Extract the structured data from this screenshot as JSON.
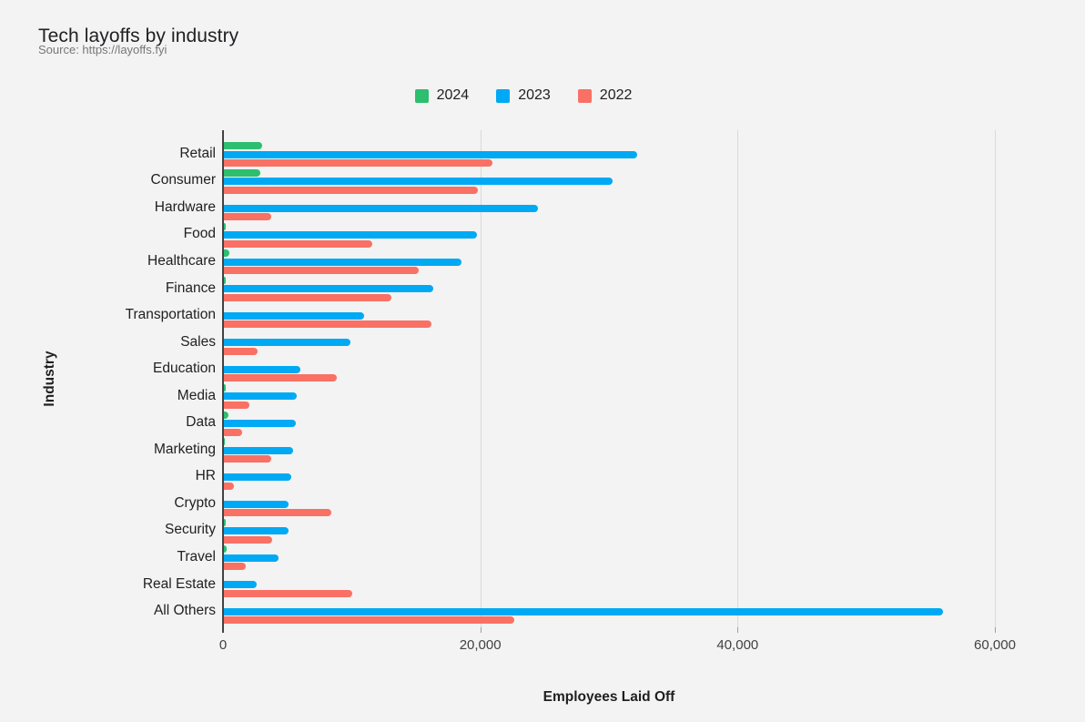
{
  "header": {
    "title": "Tech layoffs by industry",
    "source": "Source: https://layoffs.fyi"
  },
  "chart_data": {
    "type": "bar",
    "orientation": "horizontal",
    "title": "Tech layoffs by industry",
    "subtitle": "Source: https://layoffs.fyi",
    "xlabel": "Employees Laid Off",
    "ylabel": "Industry",
    "xlim": [
      0,
      64000
    ],
    "xticks": [
      0,
      20000,
      40000,
      60000
    ],
    "xtick_labels": [
      "0",
      "20,000",
      "40,000",
      "60,000"
    ],
    "grid": "vertical-gridlines-on",
    "legend_position": "top-center",
    "categories": [
      "Retail",
      "Consumer",
      "Hardware",
      "Food",
      "Healthcare",
      "Finance",
      "Transportation",
      "Sales",
      "Education",
      "Media",
      "Data",
      "Marketing",
      "HR",
      "Crypto",
      "Security",
      "Travel",
      "Real Estate",
      "All Others"
    ],
    "series": [
      {
        "name": "2024",
        "color": "#2DBE6F",
        "values": [
          3000,
          2850,
          0,
          150,
          430,
          150,
          0,
          0,
          0,
          160,
          350,
          90,
          0,
          0,
          140,
          230,
          0,
          0
        ]
      },
      {
        "name": "2023",
        "color": "#00A9F4",
        "values": [
          32100,
          30200,
          24400,
          19650,
          18450,
          16250,
          10900,
          9800,
          5970,
          5630,
          5570,
          5350,
          5220,
          5030,
          5010,
          4270,
          2520,
          55900
        ]
      },
      {
        "name": "2022",
        "color": "#F97164",
        "values": [
          20900,
          19750,
          3650,
          11500,
          15150,
          13000,
          16100,
          2600,
          8750,
          1980,
          1380,
          3650,
          800,
          8330,
          3740,
          1700,
          9950,
          22600
        ]
      }
    ]
  }
}
